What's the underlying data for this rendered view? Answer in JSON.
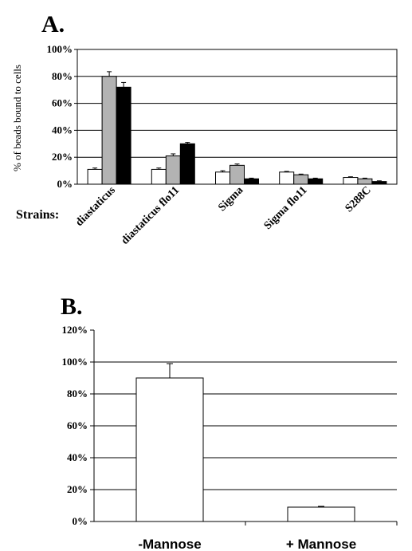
{
  "chart_data": [
    {
      "panel": "A.",
      "type": "bar",
      "ylabel": "% of beads bound to cells",
      "xlabel": "Strains:",
      "categories": [
        "diastaticus",
        "diastaticus flo11",
        "Sigma",
        "Sigma flo11",
        "S288C"
      ],
      "series": [
        {
          "color": "#ffffff",
          "values": [
            11,
            11,
            9,
            9,
            5
          ],
          "errors": [
            1,
            1,
            1,
            0.5,
            0.5
          ]
        },
        {
          "color": "#b3b3b3",
          "values": [
            80,
            21,
            14,
            7,
            4
          ],
          "errors": [
            3.5,
            1.5,
            1,
            0.5,
            0.5
          ]
        },
        {
          "color": "#000000",
          "values": [
            72,
            30,
            4,
            4,
            2
          ],
          "errors": [
            3.5,
            1,
            0.5,
            0.5,
            0.5
          ]
        }
      ],
      "ylim": [
        0,
        100
      ],
      "yticks": [
        "0%",
        "20%",
        "40%",
        "60%",
        "80%",
        "100%"
      ],
      "grid": true
    },
    {
      "panel": "B.",
      "type": "bar",
      "categories": [
        "-Mannose",
        "+ Mannose"
      ],
      "values": [
        90,
        9
      ],
      "errors": [
        9,
        0.5
      ],
      "color": "#ffffff",
      "ylim": [
        0,
        120
      ],
      "yticks": [
        "0%",
        "20%",
        "40%",
        "60%",
        "80%",
        "100%",
        "120%"
      ],
      "grid": true
    }
  ]
}
